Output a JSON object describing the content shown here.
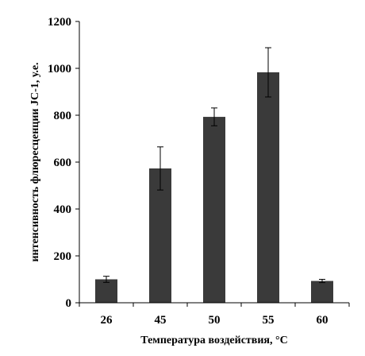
{
  "chart_data": {
    "type": "bar",
    "title": "",
    "xlabel": "Температура воздействия, °С",
    "ylabel": "интенсивность флюресценции JC-1, у.е.",
    "categories": [
      "26",
      "45",
      "50",
      "55",
      "60"
    ],
    "values": [
      100,
      573,
      793,
      983,
      93
    ],
    "errors": [
      13,
      92,
      38,
      105,
      7
    ],
    "ylim": [
      0,
      1200
    ],
    "yticks": [
      0,
      200,
      400,
      600,
      800,
      1000,
      1200
    ],
    "grid": false,
    "legend": "none",
    "bar_color": "#3a3a3a"
  }
}
